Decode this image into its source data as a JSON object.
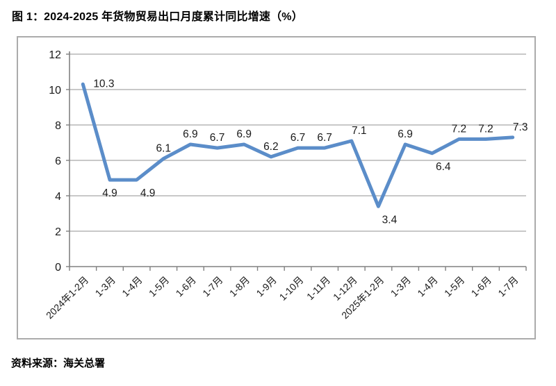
{
  "page": {
    "title": "图 1：2024-2025 年货物贸易出口月度累计同比增速（%）",
    "source": "资料来源：海关总署"
  },
  "colors": {
    "line": "#5b8dc9",
    "gridline": "#a6a6a6",
    "axis": "#808080",
    "text": "#1a1a1a",
    "frame_border": "#ababab"
  },
  "chart_data": {
    "type": "line",
    "title": "2024-2025 年货物贸易出口月度累计同比增速（%）",
    "categories": [
      "2024年1-2月",
      "1-3月",
      "1-4月",
      "1-5月",
      "1-6月",
      "1-7月",
      "1-8月",
      "1-9月",
      "1-10月",
      "1-11月",
      "1-12月",
      "2025年1-2月",
      "1-3月",
      "1-4月",
      "1-5月",
      "1-6月",
      "1-7月"
    ],
    "values": [
      10.3,
      4.9,
      4.9,
      6.1,
      6.9,
      6.7,
      6.9,
      6.2,
      6.7,
      6.7,
      7.1,
      3.4,
      6.9,
      6.4,
      7.2,
      7.2,
      7.3
    ],
    "xlabel": "",
    "ylabel": "",
    "ylim": [
      0,
      12
    ],
    "ytick_step": 2,
    "yticks": [
      0,
      2,
      4,
      6,
      8,
      10,
      12
    ],
    "grid": true,
    "legend": "none",
    "data_labels": true,
    "label_positions": [
      "right",
      "below",
      "below-right",
      "above",
      "above",
      "above",
      "above",
      "above",
      "above",
      "above",
      "above-right",
      "below-right",
      "above",
      "below-right",
      "above",
      "above",
      "above-right"
    ]
  }
}
